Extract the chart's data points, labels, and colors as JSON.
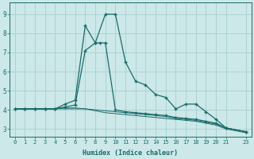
{
  "xlabel": "Humidex (Indice chaleur)",
  "ylabel": "",
  "bg_color": "#cce8e8",
  "line_color": "#1a6b6b",
  "grid_color": "#a8d0d0",
  "xlim": [
    -0.5,
    23.5
  ],
  "ylim": [
    2.6,
    9.6
  ],
  "yticks": [
    3,
    4,
    5,
    6,
    7,
    8,
    9
  ],
  "series1_x": [
    0,
    1,
    2,
    3,
    4,
    5,
    6,
    7,
    8,
    9,
    10,
    11,
    12,
    13,
    14,
    15,
    16,
    17,
    18,
    19,
    20,
    21,
    23
  ],
  "series1_y": [
    4.05,
    4.05,
    4.05,
    4.05,
    4.05,
    4.3,
    4.5,
    8.4,
    7.5,
    9.0,
    9.0,
    6.5,
    5.5,
    5.3,
    4.8,
    4.65,
    4.05,
    4.3,
    4.3,
    3.9,
    3.5,
    3.05,
    2.85
  ],
  "series2_x": [
    0,
    1,
    2,
    3,
    4,
    5,
    6,
    7,
    8,
    8.5,
    9,
    10,
    11,
    12,
    13,
    14,
    15,
    16,
    17,
    18,
    19,
    20,
    21,
    23
  ],
  "series2_y": [
    4.05,
    4.05,
    4.05,
    4.05,
    4.05,
    4.15,
    4.25,
    7.1,
    7.5,
    7.5,
    7.5,
    4.0,
    3.9,
    3.85,
    3.8,
    3.75,
    3.7,
    3.6,
    3.55,
    3.5,
    3.4,
    3.3,
    3.05,
    2.85
  ],
  "series3_x": [
    0,
    1,
    2,
    3,
    4,
    5,
    6,
    7,
    8,
    9,
    10,
    11,
    12,
    13,
    14,
    15,
    16,
    17,
    18,
    19,
    20,
    21,
    23
  ],
  "series3_y": [
    4.05,
    4.05,
    4.05,
    4.05,
    4.05,
    4.1,
    4.1,
    4.05,
    4.0,
    3.95,
    3.9,
    3.85,
    3.8,
    3.75,
    3.7,
    3.65,
    3.55,
    3.5,
    3.45,
    3.35,
    3.25,
    3.05,
    2.85
  ],
  "series4_x": [
    0,
    1,
    2,
    3,
    4,
    5,
    6,
    7,
    8,
    9,
    10,
    11,
    12,
    13,
    14,
    15,
    16,
    17,
    18,
    19,
    20,
    21,
    23
  ],
  "series4_y": [
    4.05,
    4.05,
    4.05,
    4.05,
    4.05,
    4.05,
    4.05,
    4.05,
    3.95,
    3.85,
    3.8,
    3.75,
    3.7,
    3.65,
    3.6,
    3.55,
    3.5,
    3.45,
    3.4,
    3.3,
    3.2,
    3.0,
    2.8
  ]
}
